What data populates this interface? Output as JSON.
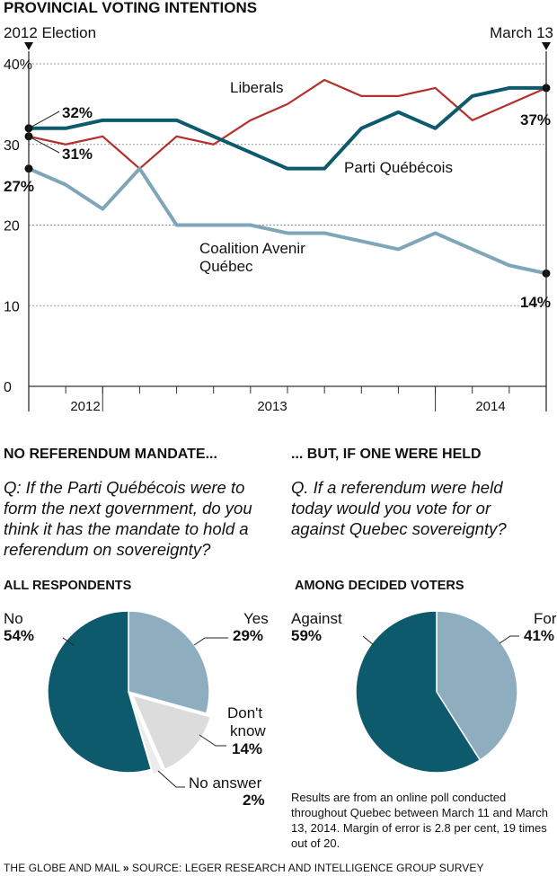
{
  "chart_data": [
    {
      "type": "line",
      "title": "PROVINCIAL VOTING INTENTIONS",
      "yticks": [
        "40%",
        "30",
        "20",
        "10",
        "0"
      ],
      "ylim": [
        0,
        40
      ],
      "x_year_labels": [
        "2012",
        "2013",
        "2014"
      ],
      "grid": true,
      "marker_left": "2012 Election",
      "marker_right": "March 13",
      "series": [
        {
          "name": "Liberals",
          "color": "#b5302a",
          "values": [
            31,
            30,
            31,
            27,
            31,
            30,
            33,
            35,
            38,
            36,
            36,
            37,
            33,
            35,
            37
          ],
          "start_label": "31%",
          "end_label": ""
        },
        {
          "name": "Parti Québécois",
          "color": "#0c5a6c",
          "values": [
            32,
            32,
            33,
            33,
            33,
            31,
            29,
            27,
            27,
            32,
            34,
            32,
            36,
            37,
            37
          ],
          "start_label": "32%",
          "end_label": "37%"
        },
        {
          "name": "Coalition Avenir Québec",
          "color": "#7fa6b8",
          "values": [
            27,
            25,
            22,
            27,
            20,
            20,
            20,
            19,
            19,
            18,
            17,
            19,
            17,
            15,
            14
          ],
          "start_label": "27%",
          "end_label": "14%"
        }
      ]
    },
    {
      "type": "pie",
      "header": "NO REFERENDUM MANDATE...",
      "question": "Q: If the Parti Québécois were to form the next government, do you think it has the mandate to hold a referendum on sovereignty?",
      "subtitle": "ALL RESPONDENTS",
      "slices": [
        {
          "label": "Yes",
          "value": 29,
          "pct": "29%",
          "color": "#8eaec0"
        },
        {
          "label": "Don't know",
          "value": 14,
          "pct": "14%",
          "color": "#dcdcdc"
        },
        {
          "label": "No answer",
          "value": 2,
          "pct": "2%",
          "color": "#ececec"
        },
        {
          "label": "No",
          "value": 54,
          "pct": "54%",
          "color": "#0c5a6c"
        }
      ]
    },
    {
      "type": "pie",
      "header": "... BUT, IF ONE WERE HELD",
      "question": "Q. If a referendum were held today would you vote for or against Quebec sovereignty?",
      "subtitle": "AMONG DECIDED VOTERS",
      "slices": [
        {
          "label": "For",
          "value": 41,
          "pct": "41%",
          "color": "#8eaec0"
        },
        {
          "label": "Against",
          "value": 59,
          "pct": "59%",
          "color": "#0c5a6c"
        }
      ]
    }
  ],
  "text": {
    "dont_know_1": "Don't",
    "dont_know_2": "know",
    "note": "Results are from an online poll conducted throughout Quebec between March 11 and March 13, 2014. Margin of error is 2.8 per cent, 19 times out of 20.",
    "footer_brand": "THE GLOBE AND MAIL",
    "footer_sep": "»",
    "footer_source": "SOURCE: LEGER RESEARCH AND INTELLIGENCE GROUP SURVEY"
  }
}
